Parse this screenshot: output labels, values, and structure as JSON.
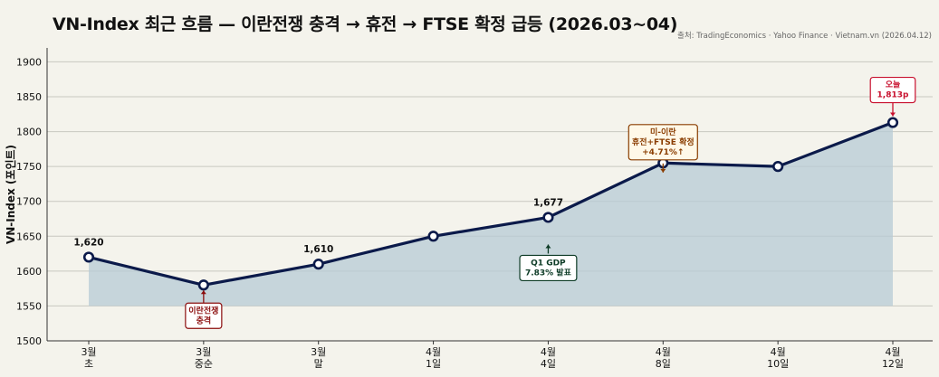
{
  "header": {
    "title": "VN-Index 최근 흐름 — 이란전쟁 충격 → 휴전 → FTSE 확정 급등 (2026.03~04)",
    "source": "출처: TradingEconomics · Yahoo Finance · Vietnam.vn (2026.04.12)"
  },
  "chart_data": {
    "type": "line",
    "title": "VN-Index 최근 흐름 — 이란전쟁 충격 → 휴전 → FTSE 확정 급등 (2026.03~04)",
    "xlabel": "",
    "ylabel": "VN-Index (포인트)",
    "categories": [
      [
        "3월",
        "초"
      ],
      [
        "3월",
        "중순"
      ],
      [
        "3월",
        "말"
      ],
      [
        "4월",
        "1일"
      ],
      [
        "4월",
        "4일"
      ],
      [
        "4월",
        "8일"
      ],
      [
        "4월",
        "10일"
      ],
      [
        "4월",
        "12일"
      ]
    ],
    "values": [
      1620,
      1580,
      1610,
      1650,
      1677,
      1755,
      1750,
      1813
    ],
    "ylim": [
      1500,
      1920
    ],
    "yticks": [
      1500,
      1550,
      1600,
      1650,
      1700,
      1750,
      1800,
      1850,
      1900
    ],
    "area_baseline": 1550,
    "grid": true,
    "data_labels": [
      {
        "index": 0,
        "text": "1,620"
      },
      {
        "index": 2,
        "text": "1,610"
      },
      {
        "index": 4,
        "text": "1,677"
      }
    ],
    "annotations": [
      {
        "index": 1,
        "lines": [
          "이란전쟁",
          "충격"
        ],
        "color": "#8b0d0d",
        "fill": "#ffffff",
        "position": "below"
      },
      {
        "index": 4,
        "lines": [
          "Q1 GDP",
          "7.83% 발표"
        ],
        "color": "#0d3b26",
        "fill": "#ffffff",
        "position": "below"
      },
      {
        "index": 5,
        "lines": [
          "미-이란",
          "휴전+FTSE 확정",
          "+4.71%↑"
        ],
        "color": "#8a3d00",
        "fill": "#fff8e8",
        "position": "above"
      },
      {
        "index": 7,
        "lines": [
          "오늘",
          "1,813p"
        ],
        "color": "#c8102e",
        "fill": "#ffffff",
        "position": "above"
      }
    ],
    "colors": {
      "line": "#0b1a4a",
      "area": "#b7cbd6",
      "marker_fill": "#ffffff",
      "grid": "#c8c8c0"
    }
  }
}
